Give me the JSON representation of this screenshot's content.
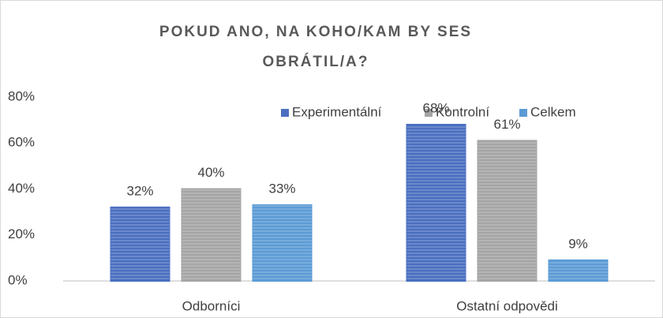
{
  "chart_data": {
    "type": "bar",
    "title": "POKUD ANO, NA KOHO/KAM BY SES OBRÁTIL/A?",
    "categories": [
      "Odborníci",
      "Ostatní odpovědi"
    ],
    "series": [
      {
        "name": "Experimentální",
        "color": "#4a6fc0",
        "values": [
          32,
          68
        ],
        "value_labels": [
          "32%",
          "68%"
        ]
      },
      {
        "name": "Kontrolní",
        "color": "#a5a5a5",
        "values": [
          40,
          61
        ],
        "value_labels": [
          "40%",
          "61%"
        ]
      },
      {
        "name": "Celkem",
        "color": "#5b9bd5",
        "values": [
          33,
          9
        ],
        "value_labels": [
          "33%",
          "9%"
        ]
      }
    ],
    "ylim": [
      0,
      80
    ],
    "yticks": [
      {
        "value": 0,
        "label": "0%"
      },
      {
        "value": 20,
        "label": "20%"
      },
      {
        "value": 40,
        "label": "40%"
      },
      {
        "value": 60,
        "label": "60%"
      },
      {
        "value": 80,
        "label": "80%"
      }
    ],
    "grid": false,
    "legend": "top-right"
  }
}
